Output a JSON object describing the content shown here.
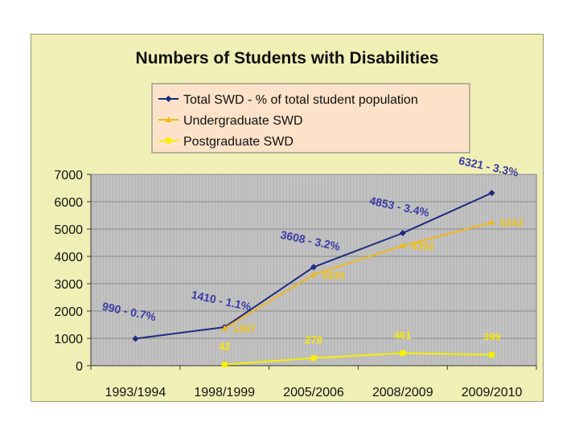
{
  "chart_data": {
    "type": "line",
    "title": "Numbers of Students with Disabilities",
    "categories": [
      "1993/1994",
      "1998/1999",
      "2005/2006",
      "2008/2009",
      "2009/2010"
    ],
    "ylim": [
      0,
      7000
    ],
    "yticks": [
      "0",
      "1000",
      "2000",
      "3000",
      "4000",
      "5000",
      "6000",
      "7000"
    ],
    "grid": true,
    "legend_position": "top-center",
    "series": [
      {
        "name": "Total SWD - % of total student population",
        "color": "#1f2a80",
        "values": [
          990,
          1410,
          3608,
          4853,
          6321
        ],
        "labels": [
          "990 - 0.7%",
          "1410 - 1.1%",
          "3608 - 3.2%",
          "4853 - 3.4%",
          "6321 - 3.3%"
        ]
      },
      {
        "name": "Undergraduate SWD",
        "color": "#f0b81c",
        "values": [
          null,
          1367,
          3330,
          4392,
          5243
        ],
        "labels": [
          null,
          "1367",
          "3330",
          "4392",
          "5243"
        ]
      },
      {
        "name": "Postgraduate SWD",
        "color": "#f7f000",
        "values": [
          null,
          42,
          278,
          461,
          399
        ],
        "labels": [
          null,
          "42",
          "278",
          "461",
          "399"
        ]
      }
    ]
  }
}
